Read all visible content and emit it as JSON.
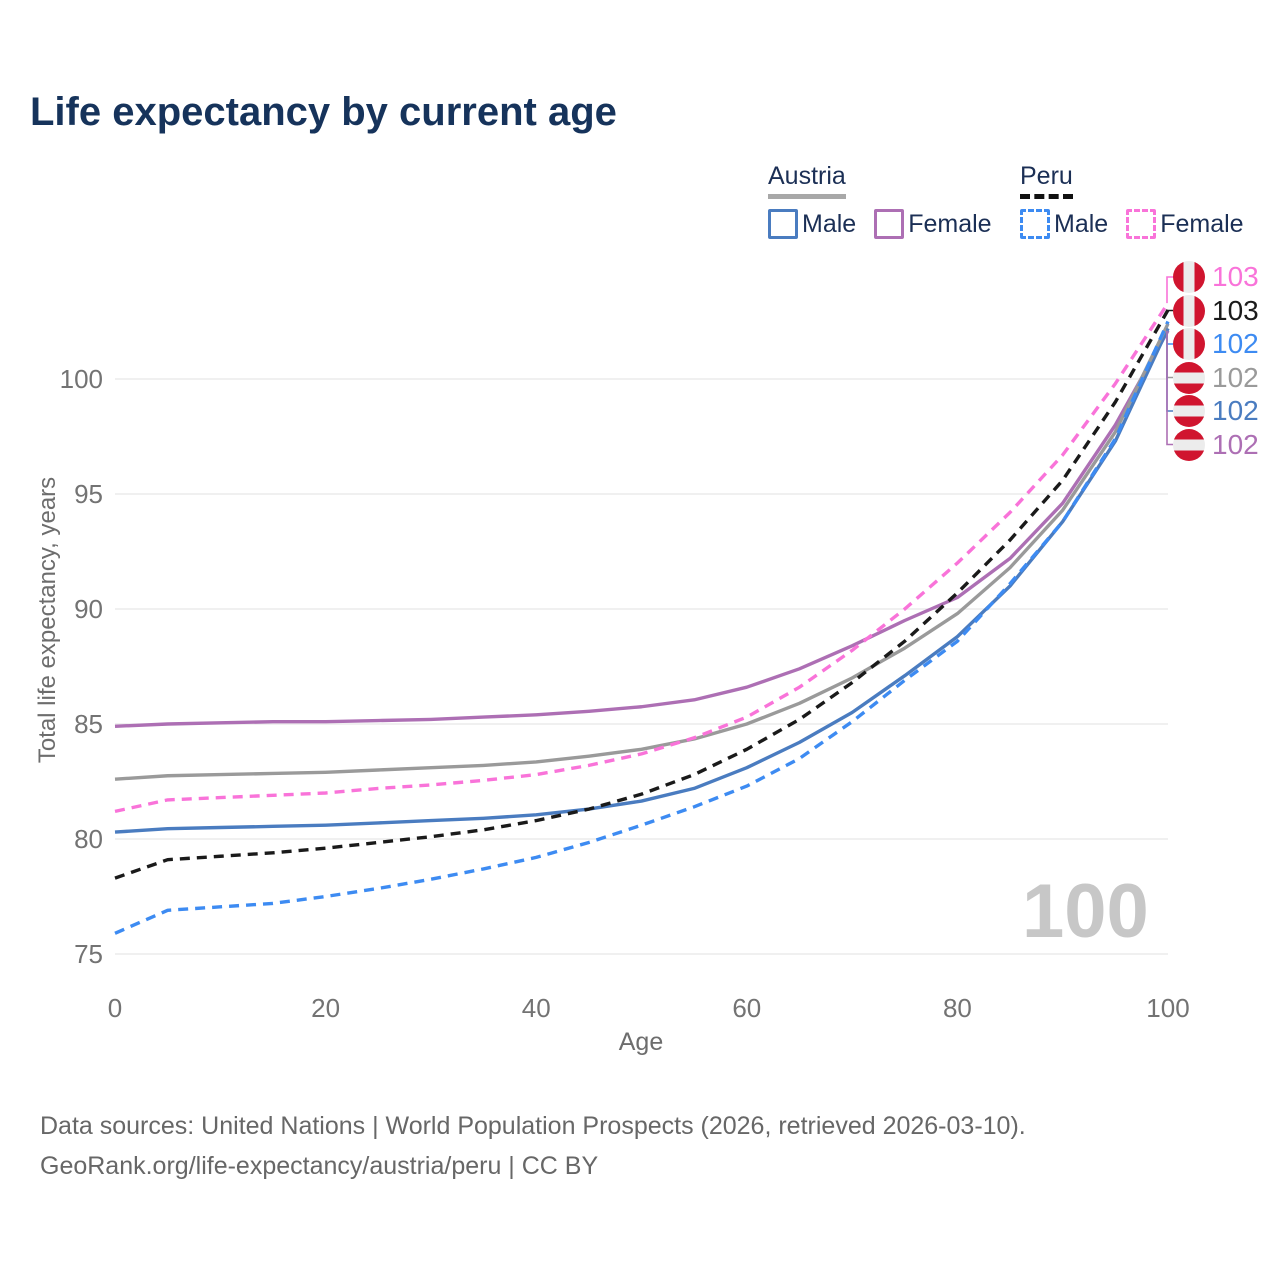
{
  "title": "Life expectancy by current age",
  "legend": {
    "groups": [
      {
        "label": "Austria",
        "line_style": "solid",
        "color": "#a8a8a8",
        "items": [
          {
            "label": "Male",
            "color": "#4a7cc0"
          },
          {
            "label": "Female",
            "color": "#ad6fb4"
          }
        ]
      },
      {
        "label": "Peru",
        "line_style": "dashed",
        "color": "#111111",
        "items": [
          {
            "label": "Male",
            "color": "#3d8bf2"
          },
          {
            "label": "Female",
            "color": "#f973d9"
          }
        ]
      }
    ]
  },
  "watermark": "100",
  "footer": {
    "line1": "Data sources: United Nations | World Population Prospects (2026, retrieved 2026-03-10).",
    "line2": "GeoRank.org/life-expectancy/austria/peru | CC BY"
  },
  "chart_data": {
    "type": "line",
    "title": "Life expectancy by current age",
    "xlabel": "Age",
    "ylabel": "Total life expectancy, years",
    "x_ticks": [
      0,
      20,
      40,
      60,
      80,
      100
    ],
    "y_ticks": [
      75,
      80,
      85,
      90,
      95,
      100
    ],
    "xlim": [
      0,
      100
    ],
    "ylim": [
      75,
      104
    ],
    "grid": "horizontal",
    "x": [
      0,
      5,
      10,
      15,
      20,
      25,
      30,
      35,
      40,
      45,
      50,
      55,
      60,
      65,
      70,
      75,
      80,
      85,
      90,
      95,
      100
    ],
    "series": [
      {
        "id": "peru-female",
        "country": "Peru",
        "name": "Female",
        "color": "#f973d9",
        "dashed": true,
        "flag": "peru",
        "end_label": "103",
        "values": [
          81.2,
          81.7,
          81.8,
          81.9,
          82.0,
          82.2,
          82.35,
          82.55,
          82.8,
          83.2,
          83.7,
          84.4,
          85.3,
          86.6,
          88.2,
          90.0,
          92.0,
          94.2,
          96.7,
          99.8,
          103.3
        ]
      },
      {
        "id": "peru-mean",
        "country": "Peru",
        "name": "Peru",
        "color": "#1a1a1a",
        "dashed": true,
        "flag": "peru",
        "end_label": "103",
        "values": [
          78.3,
          79.1,
          79.25,
          79.4,
          79.6,
          79.85,
          80.1,
          80.4,
          80.8,
          81.3,
          81.95,
          82.8,
          83.9,
          85.2,
          86.8,
          88.6,
          90.7,
          93.0,
          95.6,
          99.0,
          103.0
        ]
      },
      {
        "id": "peru-male",
        "country": "Peru",
        "name": "Male",
        "color": "#3d8bf2",
        "dashed": true,
        "flag": "peru",
        "end_label": "102",
        "values": [
          75.9,
          76.9,
          77.05,
          77.2,
          77.5,
          77.85,
          78.25,
          78.7,
          79.2,
          79.85,
          80.6,
          81.4,
          82.3,
          83.5,
          85.1,
          86.9,
          88.6,
          91.1,
          93.8,
          97.4,
          102.5
        ]
      },
      {
        "id": "austria-mean",
        "country": "Austria",
        "name": "Austria",
        "color": "#9a9a9a",
        "dashed": false,
        "flag": "austria",
        "end_label": "102",
        "values": [
          82.6,
          82.75,
          82.8,
          82.85,
          82.9,
          83.0,
          83.1,
          83.2,
          83.35,
          83.6,
          83.9,
          84.35,
          85.0,
          85.9,
          87.0,
          88.3,
          89.8,
          91.8,
          94.3,
          97.7,
          102.4
        ]
      },
      {
        "id": "austria-male",
        "country": "Austria",
        "name": "Male",
        "color": "#4a7cc0",
        "dashed": false,
        "flag": "austria",
        "end_label": "102",
        "values": [
          80.3,
          80.45,
          80.5,
          80.55,
          80.6,
          80.7,
          80.8,
          80.9,
          81.05,
          81.3,
          81.65,
          82.2,
          83.1,
          84.2,
          85.5,
          87.1,
          88.8,
          91.0,
          93.8,
          97.3,
          102.2
        ]
      },
      {
        "id": "austria-female",
        "country": "Austria",
        "name": "Female",
        "color": "#ad6fb4",
        "dashed": false,
        "flag": "austria",
        "end_label": "102",
        "values": [
          84.9,
          85.0,
          85.05,
          85.1,
          85.1,
          85.15,
          85.2,
          85.3,
          85.4,
          85.55,
          85.75,
          86.05,
          86.6,
          87.4,
          88.4,
          89.5,
          90.5,
          92.2,
          94.6,
          98.0,
          102.1
        ]
      }
    ]
  }
}
